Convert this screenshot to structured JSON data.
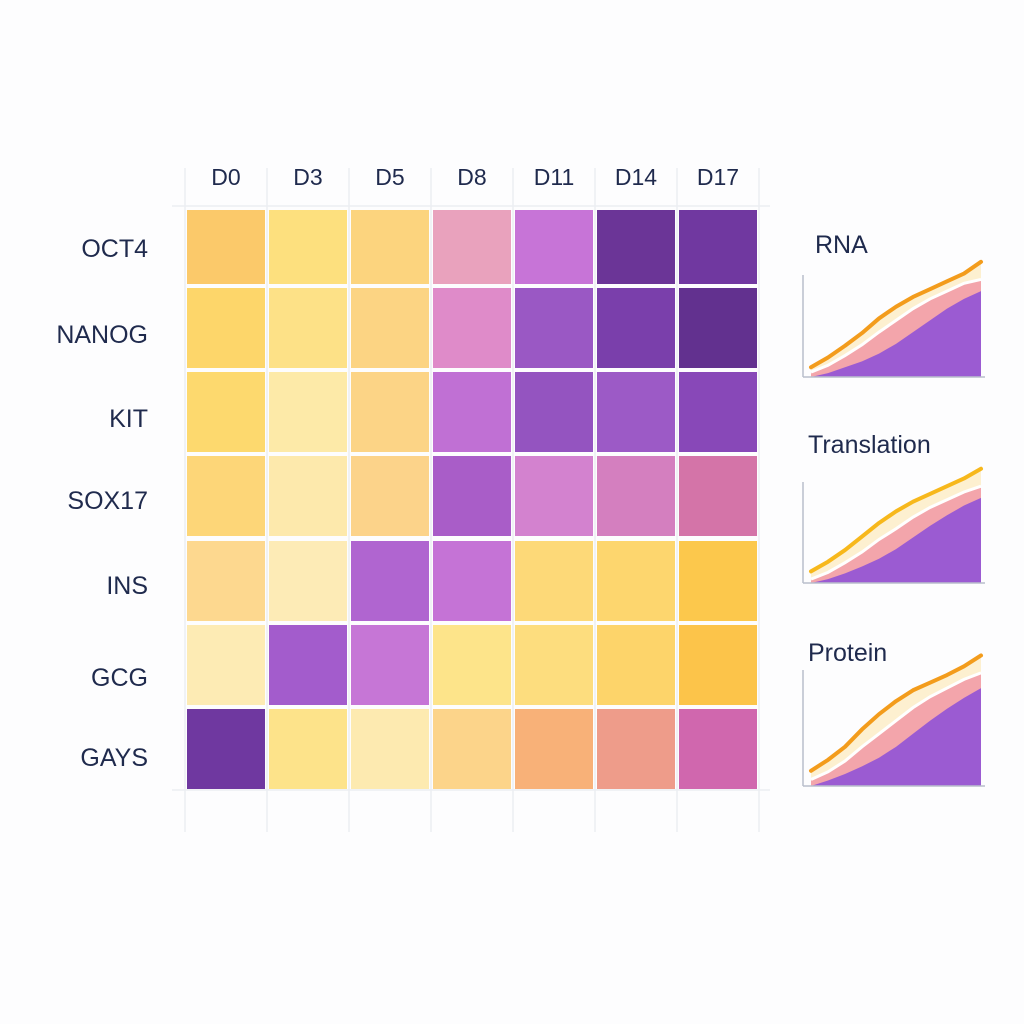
{
  "chart_data": [
    {
      "type": "heatmap",
      "title": "",
      "columns": [
        "D0",
        "D3",
        "D5",
        "D8",
        "D11",
        "D14",
        "D17"
      ],
      "rows": [
        "OCT4",
        "NANOG",
        "KIT",
        "SOX17",
        "INS",
        "GCG",
        "GAYS"
      ],
      "colors": [
        [
          "#fbc96a",
          "#fde07e",
          "#fcd47e",
          "#e9a2bd",
          "#c774d7",
          "#6b3597",
          "#7038a0"
        ],
        [
          "#fdd66a",
          "#fde187",
          "#fcd483",
          "#df8bc9",
          "#9a58c4",
          "#7a3fab",
          "#62318f"
        ],
        [
          "#fdd96e",
          "#fdeaa8",
          "#fcd486",
          "#c070d4",
          "#9454c0",
          "#9c5ac6",
          "#8848b8"
        ],
        [
          "#fdd678",
          "#fde9ac",
          "#fcd38a",
          "#a95dc8",
          "#d382cf",
          "#d47fbf",
          "#d474a8"
        ],
        [
          "#fdd88f",
          "#fdebb6",
          "#b065d0",
          "#c573d6",
          "#fdd978",
          "#fdd66e",
          "#fcc84c"
        ],
        [
          "#fdebb4",
          "#a35ccc",
          "#c676d6",
          "#fde48a",
          "#fddd7e",
          "#fdd46a",
          "#fcc44a"
        ],
        [
          "#6f38a0",
          "#fde38a",
          "#fdeab0",
          "#fcd48a",
          "#f8b178",
          "#ee9c8a",
          "#d067ae"
        ]
      ],
      "colorscale": [
        "#fdebb4",
        "#fcc84c",
        "#e9a2bd",
        "#c573d6",
        "#62318f"
      ]
    },
    {
      "type": "area",
      "title": "RNA",
      "x": [
        0,
        1,
        2,
        3,
        4,
        5,
        6,
        7,
        8,
        9,
        10
      ],
      "series": [
        {
          "name": "upper-line",
          "color": "#f39c1c",
          "values": [
            10,
            20,
            32,
            45,
            60,
            72,
            82,
            90,
            98,
            106,
            118
          ]
        },
        {
          "name": "pink-band",
          "color": "#f2a0a6",
          "values": [
            5,
            12,
            22,
            33,
            46,
            58,
            70,
            80,
            88,
            96,
            100
          ]
        },
        {
          "name": "purple-band",
          "color": "#9b5bd2",
          "values": [
            0,
            4,
            10,
            16,
            24,
            34,
            46,
            58,
            70,
            80,
            88
          ]
        }
      ],
      "ylim": [
        0,
        125
      ]
    },
    {
      "type": "area",
      "title": "Translation",
      "x": [
        0,
        1,
        2,
        3,
        4,
        5,
        6,
        7,
        8,
        9,
        10
      ],
      "series": [
        {
          "name": "upper-line",
          "color": "#f7b81c",
          "values": [
            12,
            22,
            34,
            48,
            62,
            74,
            84,
            92,
            100,
            108,
            118
          ]
        },
        {
          "name": "pink-band",
          "color": "#f2a0a6",
          "values": [
            4,
            11,
            21,
            32,
            45,
            56,
            68,
            78,
            86,
            94,
            100
          ]
        },
        {
          "name": "purple-band",
          "color": "#9b5bd2",
          "values": [
            0,
            4,
            10,
            17,
            25,
            35,
            47,
            59,
            70,
            80,
            88
          ]
        }
      ],
      "ylim": [
        0,
        125
      ]
    },
    {
      "type": "area",
      "title": "Protein",
      "x": [
        0,
        1,
        2,
        3,
        4,
        5,
        6,
        7,
        8,
        9,
        10
      ],
      "series": [
        {
          "name": "upper-line",
          "color": "#f39c1c",
          "values": [
            14,
            24,
            36,
            52,
            66,
            78,
            88,
            95,
            102,
            110,
            120
          ]
        },
        {
          "name": "pink-band",
          "color": "#f2a0a6",
          "values": [
            6,
            13,
            23,
            36,
            48,
            60,
            72,
            82,
            90,
            98,
            104
          ]
        },
        {
          "name": "purple-band",
          "color": "#9b5bd2",
          "values": [
            0,
            5,
            11,
            18,
            26,
            36,
            48,
            60,
            71,
            81,
            90
          ]
        }
      ],
      "ylim": [
        0,
        125
      ]
    }
  ]
}
